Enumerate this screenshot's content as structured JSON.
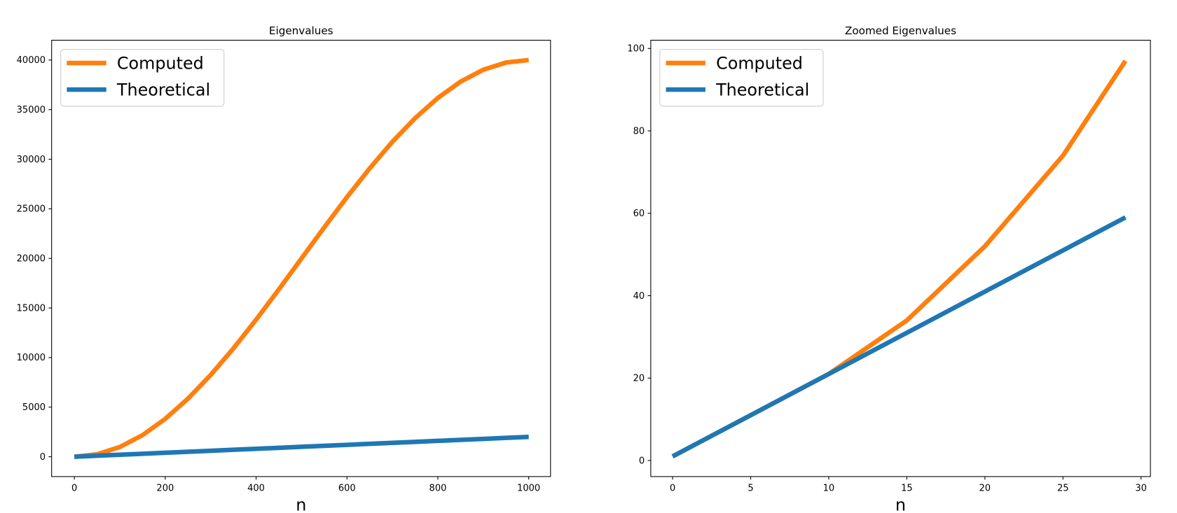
{
  "chart_data": [
    {
      "type": "line",
      "title": "Eigenvalues",
      "xlabel": "n",
      "x": [
        0,
        50,
        100,
        150,
        200,
        250,
        300,
        350,
        400,
        450,
        500,
        550,
        600,
        650,
        700,
        750,
        800,
        850,
        900,
        950,
        1000
      ],
      "series": [
        {
          "name": "Computed",
          "color": "#ff7f0e",
          "values": [
            0,
            246,
            979,
            2179,
            3820,
            5858,
            8244,
            10920,
            13820,
            16870,
            20000,
            23130,
            26180,
            29080,
            31760,
            34140,
            36180,
            37820,
            39020,
            39750,
            40000
          ]
        },
        {
          "name": "Theoretical",
          "color": "#1f77b4",
          "values": [
            1,
            101,
            201,
            301,
            401,
            501,
            601,
            701,
            801,
            901,
            1001,
            1101,
            1201,
            1301,
            1401,
            1501,
            1601,
            1701,
            1801,
            1901,
            2001
          ]
        }
      ],
      "xlim": [
        -50,
        1048
      ],
      "xticks": [
        0,
        200,
        400,
        600,
        800,
        1000
      ],
      "ylim": [
        -2000,
        42000
      ],
      "yticks": [
        0,
        5000,
        10000,
        15000,
        20000,
        25000,
        30000,
        35000,
        40000
      ],
      "legend": "upper left"
    },
    {
      "type": "line",
      "title": "Zoomed Eigenvalues",
      "xlabel": "n",
      "x": [
        0,
        5,
        10,
        15,
        20,
        25,
        29
      ],
      "series": [
        {
          "name": "Computed",
          "color": "#ff7f0e",
          "values": [
            1,
            11,
            21,
            34,
            52,
            74,
            97
          ]
        },
        {
          "name": "Theoretical",
          "color": "#1f77b4",
          "values": [
            1,
            11,
            21,
            31,
            41,
            51,
            59
          ]
        }
      ],
      "xlim": [
        -1.4,
        30.6
      ],
      "xticks": [
        0,
        5,
        10,
        15,
        20,
        25,
        30
      ],
      "ylim": [
        -3.9,
        102
      ],
      "yticks": [
        0,
        20,
        40,
        60,
        80,
        100
      ],
      "legend": "upper left"
    }
  ]
}
